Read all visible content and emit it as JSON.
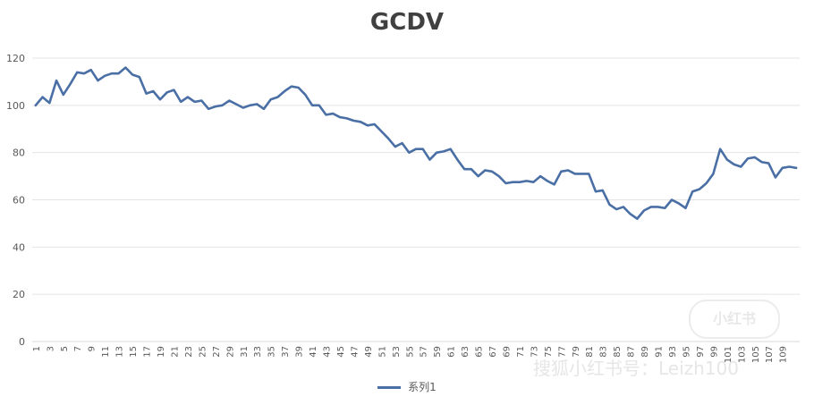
{
  "chart_data": {
    "type": "line",
    "title": "GCDV",
    "xlabel": "",
    "ylabel": "",
    "ylim": [
      0,
      120
    ],
    "yticks": [
      0,
      20,
      40,
      60,
      80,
      100,
      120
    ],
    "grid": true,
    "legend": "bottom",
    "x": [
      1,
      2,
      3,
      4,
      5,
      6,
      7,
      8,
      9,
      10,
      11,
      12,
      13,
      14,
      15,
      16,
      17,
      18,
      19,
      20,
      21,
      22,
      23,
      24,
      25,
      26,
      27,
      28,
      29,
      30,
      31,
      32,
      33,
      34,
      35,
      36,
      37,
      38,
      39,
      40,
      41,
      42,
      43,
      44,
      45,
      46,
      47,
      48,
      49,
      50,
      51,
      52,
      53,
      54,
      55,
      56,
      57,
      58,
      59,
      60,
      61,
      62,
      63,
      64,
      65,
      66,
      67,
      68,
      69,
      70,
      71,
      72,
      73,
      74,
      75,
      76,
      77,
      78,
      79,
      80,
      81,
      82,
      83,
      84,
      85,
      86,
      87,
      88,
      89,
      90,
      91,
      92,
      93,
      94,
      95,
      96,
      97,
      98,
      99,
      100,
      101,
      102,
      103,
      104,
      105,
      106,
      107,
      108,
      109,
      110,
      111
    ],
    "xtick_labels": [
      "1",
      "3",
      "5",
      "7",
      "9",
      "11",
      "13",
      "15",
      "17",
      "19",
      "21",
      "23",
      "25",
      "27",
      "29",
      "31",
      "33",
      "35",
      "37",
      "39",
      "41",
      "43",
      "45",
      "47",
      "49",
      "51",
      "53",
      "55",
      "57",
      "59",
      "61",
      "63",
      "65",
      "67",
      "69",
      "71",
      "73",
      "75",
      "77",
      "79",
      "81",
      "83",
      "85",
      "87",
      "89",
      "91",
      "93",
      "95",
      "97",
      "99",
      "101",
      "103",
      "105",
      "107",
      "109"
    ],
    "series": [
      {
        "name": "系列1",
        "color": "#4a6fa5",
        "values": [
          100,
          103.5,
          101,
          110.5,
          104.5,
          109,
          114,
          113.5,
          115,
          110.5,
          112.5,
          113.5,
          113.5,
          116,
          113,
          112,
          105,
          106,
          102.5,
          105.5,
          106.5,
          101.5,
          103.5,
          101.5,
          102,
          98.5,
          99.5,
          100,
          102,
          100.5,
          99,
          100,
          100.5,
          98.5,
          102.5,
          103.5,
          106,
          108,
          107.5,
          104.5,
          100,
          100,
          96,
          96.5,
          95,
          94.5,
          93.5,
          93,
          91.5,
          92,
          89,
          86,
          82.5,
          84,
          80,
          81.5,
          81.5,
          77,
          80,
          80.5,
          81.5,
          77,
          73,
          73,
          70,
          72.5,
          72,
          70,
          67,
          67.5,
          67.5,
          68,
          67.5,
          70,
          68,
          66.5,
          72,
          72.5,
          71,
          71,
          71,
          63.5,
          64,
          58,
          56,
          57,
          54,
          52,
          55.5,
          57,
          57,
          56.5,
          60,
          58.5,
          56.5,
          63.5,
          64.5,
          67,
          71,
          81.5,
          77,
          75,
          74,
          77.5,
          78,
          76,
          75.5,
          69.5,
          73.5,
          74,
          73.5
        ]
      }
    ]
  },
  "watermark": {
    "text": "搜狐小红书号：Leizh100",
    "logo_text": "小红书"
  }
}
